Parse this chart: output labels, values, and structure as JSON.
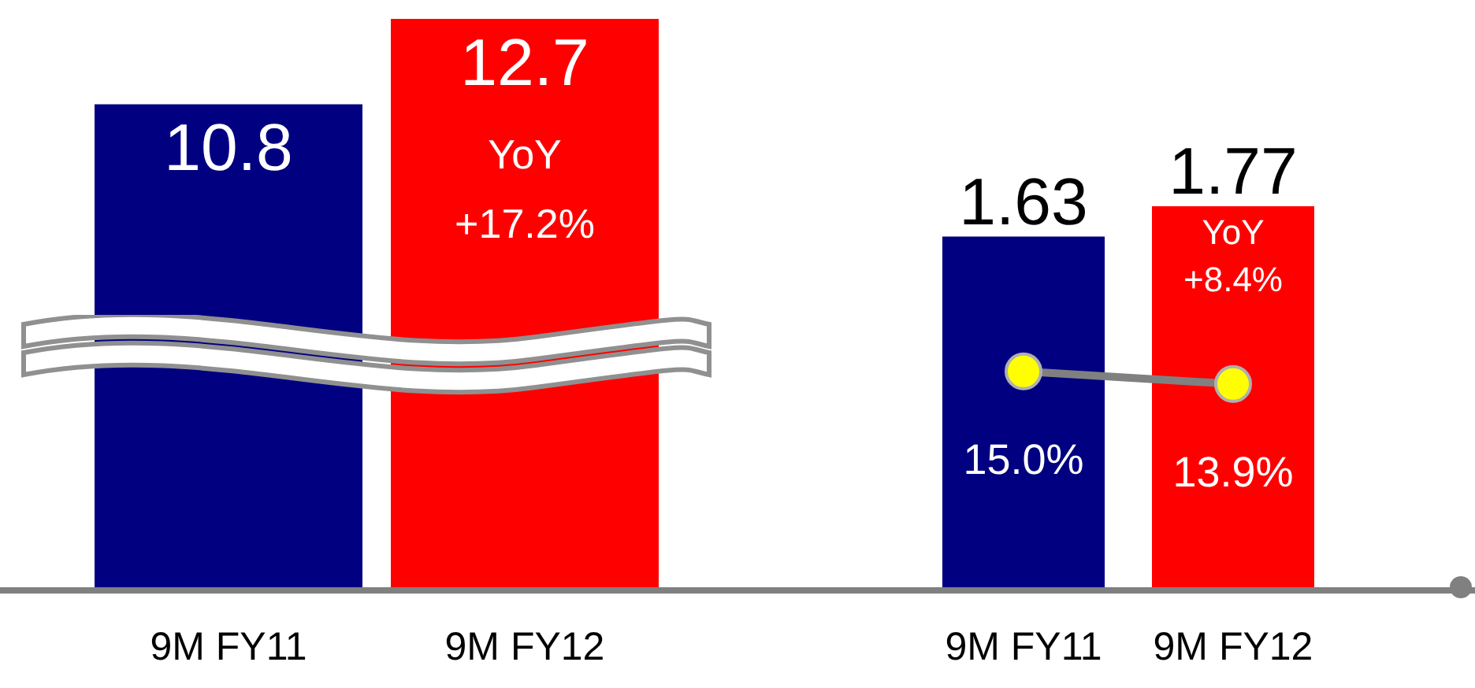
{
  "chart_data": [
    {
      "type": "bar",
      "categories": [
        "9M FY11",
        "9M FY12"
      ],
      "values": [
        10.8,
        12.7
      ],
      "colors": [
        "#000080",
        "#ff0000"
      ],
      "data_labels": true,
      "tick_labels": "x",
      "legend": false,
      "grid": false,
      "annotations": [
        "YoY +17.2%"
      ]
    },
    {
      "type": "bar",
      "categories": [
        "9M FY11",
        "9M FY12"
      ],
      "series": [
        {
          "type": "bar",
          "values": [
            1.63,
            1.77
          ],
          "colors": [
            "#000080",
            "#ff0000"
          ]
        },
        {
          "type": "line",
          "axis": "y2",
          "color": "#808080",
          "values": [
            15.0,
            13.9
          ],
          "value_labels": [
            "15.0%",
            "13.9%"
          ],
          "marker": "circle"
        }
      ],
      "data_labels": true,
      "tick_labels": "x",
      "legend": false,
      "grid": false,
      "annotations": [
        "YoY +8.4%"
      ]
    }
  ]
}
